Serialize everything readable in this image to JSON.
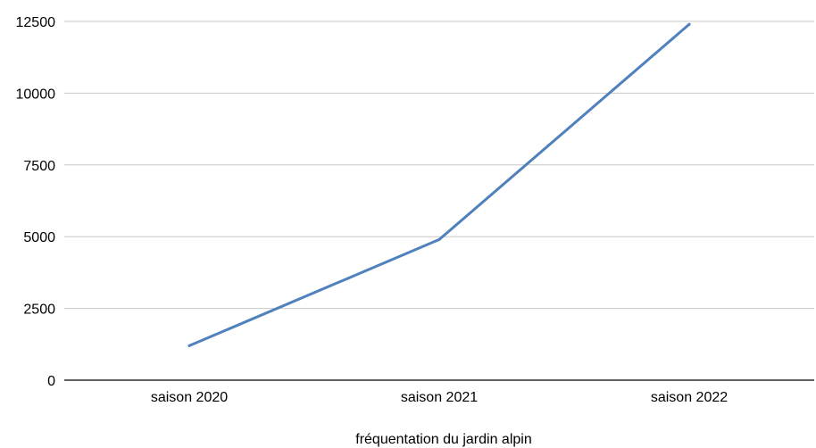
{
  "chart_data": {
    "type": "line",
    "title": "",
    "xlabel": "fréquentation du jardin alpin",
    "ylabel": "",
    "categories": [
      "saison 2020",
      "saison 2021",
      "saison 2022"
    ],
    "series": [
      {
        "values": [
          1200,
          4900,
          12400
        ],
        "color": "#4f81bd"
      }
    ],
    "ylim": [
      0,
      12500
    ],
    "yticks": [
      0,
      2500,
      5000,
      7500,
      10000,
      12500
    ],
    "ytick_labels": [
      "0",
      "2500",
      "5000",
      "7500",
      "10000",
      "12500"
    ],
    "grid": true,
    "legend": "none"
  }
}
